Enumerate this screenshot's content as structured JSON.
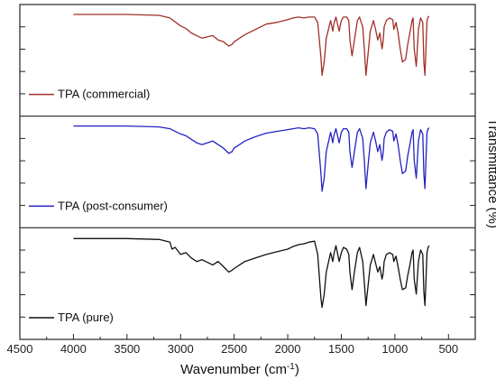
{
  "chart_data": {
    "type": "line",
    "xlabel": "Wavenumber (cm",
    "xlabel_sup": "-1",
    "xlabel_end": ")",
    "ylabel": "Transmittance (%)",
    "xlim": [
      4500,
      250
    ],
    "x_reversed": true,
    "xticks": [
      4500,
      4000,
      3500,
      3000,
      2500,
      2000,
      1500,
      1000,
      500
    ],
    "stacked_panels": 3,
    "series": [
      {
        "name": "TPA (commercial)",
        "color": "#a0302a",
        "x": [
          4000,
          3500,
          3200,
          3100,
          3000,
          2950,
          2900,
          2850,
          2800,
          2700,
          2650,
          2600,
          2550,
          2520,
          2500,
          2450,
          2400,
          2300,
          2200,
          2100,
          2000,
          1950,
          1900,
          1850,
          1800,
          1750,
          1720,
          1690,
          1680,
          1660,
          1640,
          1600,
          1580,
          1570,
          1550,
          1520,
          1500,
          1480,
          1450,
          1430,
          1420,
          1400,
          1380,
          1350,
          1330,
          1300,
          1285,
          1270,
          1250,
          1230,
          1200,
          1180,
          1160,
          1140,
          1120,
          1110,
          1100,
          1080,
          1050,
          1020,
          1010,
          990,
          970,
          950,
          930,
          900,
          880,
          860,
          840,
          830,
          820,
          800,
          780,
          760,
          740,
          730,
          720,
          710,
          700,
          690,
          680
        ],
        "y": [
          99,
          99,
          98,
          95,
          86,
          83,
          78,
          75,
          72,
          75,
          70,
          68,
          63,
          65,
          68,
          72,
          76,
          82,
          88,
          90,
          93,
          95,
          96,
          95,
          96,
          96,
          90,
          50,
          30,
          45,
          72,
          92,
          80,
          88,
          96,
          80,
          92,
          96,
          96,
          92,
          70,
          52,
          68,
          92,
          96,
          85,
          60,
          30,
          55,
          80,
          92,
          82,
          70,
          78,
          60,
          68,
          85,
          92,
          95,
          93,
          82,
          90,
          78,
          60,
          45,
          48,
          65,
          78,
          92,
          95,
          60,
          40,
          82,
          95,
          90,
          45,
          30,
          60,
          92,
          96,
          97
        ]
      },
      {
        "name": "TPA (post-consumer)",
        "color": "#2323c2",
        "x": [
          4000,
          3500,
          3200,
          3100,
          3000,
          2950,
          2900,
          2850,
          2800,
          2700,
          2650,
          2600,
          2550,
          2520,
          2500,
          2450,
          2400,
          2300,
          2200,
          2100,
          2000,
          1950,
          1900,
          1850,
          1800,
          1750,
          1720,
          1690,
          1680,
          1660,
          1640,
          1600,
          1580,
          1570,
          1550,
          1520,
          1500,
          1480,
          1450,
          1430,
          1420,
          1400,
          1380,
          1350,
          1330,
          1300,
          1285,
          1270,
          1250,
          1230,
          1200,
          1180,
          1160,
          1140,
          1120,
          1110,
          1100,
          1080,
          1050,
          1020,
          1010,
          990,
          970,
          950,
          930,
          900,
          880,
          860,
          840,
          830,
          820,
          800,
          780,
          760,
          740,
          730,
          720,
          710,
          700,
          690,
          680
        ],
        "y": [
          99,
          99,
          98,
          96,
          90,
          88,
          84,
          80,
          78,
          82,
          78,
          74,
          68,
          70,
          74,
          78,
          82,
          87,
          91,
          93,
          95,
          96,
          97,
          96,
          97,
          96,
          90,
          45,
          25,
          40,
          70,
          92,
          80,
          88,
          96,
          80,
          92,
          96,
          96,
          92,
          70,
          52,
          68,
          92,
          96,
          85,
          60,
          28,
          55,
          80,
          92,
          82,
          70,
          78,
          60,
          68,
          85,
          92,
          95,
          93,
          82,
          90,
          78,
          60,
          45,
          48,
          65,
          78,
          92,
          95,
          60,
          40,
          82,
          95,
          90,
          45,
          28,
          60,
          92,
          96,
          97
        ]
      },
      {
        "name": "TPA (pure)",
        "color": "#111111",
        "x": [
          4000,
          3500,
          3200,
          3100,
          3080,
          3050,
          3000,
          2950,
          2900,
          2850,
          2800,
          2700,
          2650,
          2600,
          2550,
          2520,
          2500,
          2450,
          2400,
          2300,
          2200,
          2100,
          2000,
          1950,
          1900,
          1850,
          1800,
          1750,
          1720,
          1690,
          1680,
          1660,
          1640,
          1600,
          1580,
          1570,
          1550,
          1520,
          1500,
          1480,
          1450,
          1430,
          1420,
          1400,
          1380,
          1350,
          1330,
          1300,
          1285,
          1270,
          1250,
          1230,
          1200,
          1180,
          1160,
          1140,
          1120,
          1110,
          1100,
          1080,
          1050,
          1020,
          1010,
          990,
          970,
          950,
          930,
          900,
          880,
          860,
          840,
          830,
          820,
          800,
          780,
          760,
          740,
          730,
          720,
          710,
          700,
          690,
          680
        ],
        "y": [
          98,
          98,
          97,
          94,
          86,
          88,
          80,
          82,
          76,
          72,
          74,
          68,
          72,
          66,
          60,
          62,
          64,
          68,
          72,
          76,
          80,
          83,
          86,
          89,
          91,
          92,
          94,
          95,
          80,
          30,
          20,
          35,
          60,
          82,
          72,
          80,
          90,
          72,
          82,
          88,
          86,
          80,
          60,
          40,
          58,
          82,
          88,
          72,
          48,
          22,
          45,
          68,
          80,
          70,
          60,
          66,
          52,
          58,
          72,
          80,
          82,
          80,
          72,
          78,
          66,
          52,
          40,
          42,
          56,
          68,
          82,
          85,
          52,
          35,
          72,
          85,
          80,
          38,
          22,
          50,
          82,
          88,
          90
        ]
      }
    ]
  }
}
